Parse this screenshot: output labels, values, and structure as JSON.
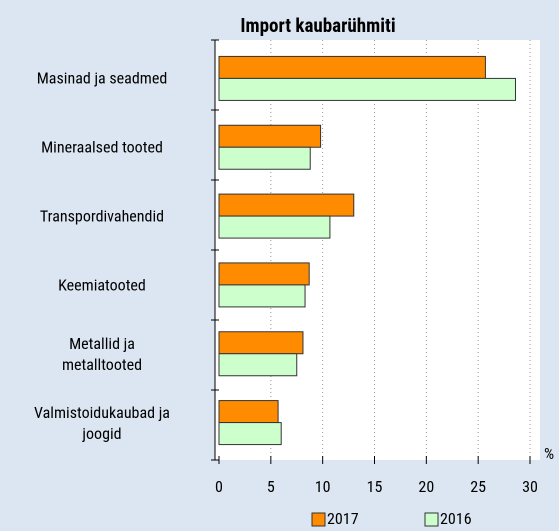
{
  "chart_data": {
    "type": "hbar",
    "title": "Import kaubarühmiti",
    "categories": [
      "Masinad ja seadmed",
      "Mineraalsed tooted",
      "Transpordivahendid",
      "Keemiatooted",
      "Metallid ja\nmetalltooted",
      "Valmistoidukaubad ja\njoogid"
    ],
    "series": [
      {
        "name": "2017",
        "color": "#ff8c00",
        "values": [
          25.7,
          9.8,
          13.0,
          8.7,
          8.1,
          5.7
        ]
      },
      {
        "name": "2016",
        "color": "#ccffcc",
        "values": [
          28.6,
          8.8,
          10.7,
          8.3,
          7.5,
          6.0
        ]
      }
    ],
    "xlabel": "%",
    "xlim": [
      0,
      30
    ],
    "xticks": [
      0,
      5,
      10,
      15,
      20,
      25,
      30
    ],
    "grid": true
  }
}
